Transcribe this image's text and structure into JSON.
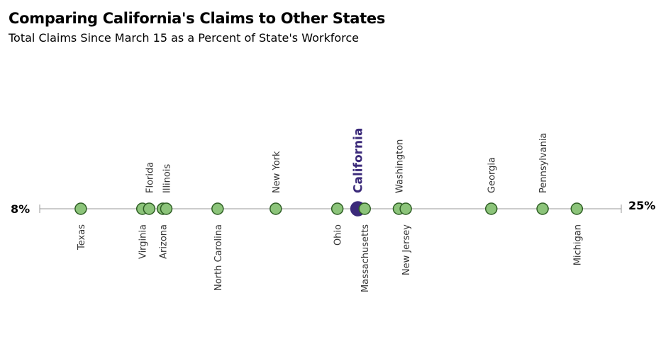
{
  "chart_data": {
    "type": "scatter",
    "title": "Comparing California's Claims to Other States",
    "subtitle": "Total Claims Since March 15 as a Percent of State's Workforce",
    "xlim": [
      8,
      25
    ],
    "min_label": "8%",
    "max_label": "25%",
    "point_color": "#8cc47a",
    "point_stroke": "#2e5e24",
    "highlight_color": "#3b2a7a",
    "points": [
      {
        "label": "Texas",
        "value": 9.2,
        "side": "below"
      },
      {
        "label": "Virginia",
        "value": 11.0,
        "side": "below"
      },
      {
        "label": "Florida",
        "value": 11.2,
        "side": "above"
      },
      {
        "label": "Arizona",
        "value": 11.6,
        "side": "below"
      },
      {
        "label": "Illinois",
        "value": 11.7,
        "side": "above"
      },
      {
        "label": "North Carolina",
        "value": 13.2,
        "side": "below"
      },
      {
        "label": "New York",
        "value": 14.9,
        "side": "above"
      },
      {
        "label": "Ohio",
        "value": 16.7,
        "side": "below"
      },
      {
        "label": "Massachusetts",
        "value": 17.5,
        "side": "below"
      },
      {
        "label": "California",
        "value": 17.3,
        "side": "above",
        "highlight": true
      },
      {
        "label": "Washington",
        "value": 18.5,
        "side": "above"
      },
      {
        "label": "New Jersey",
        "value": 18.7,
        "side": "below"
      },
      {
        "label": "Georgia",
        "value": 21.2,
        "side": "above"
      },
      {
        "label": "Pennsylvania",
        "value": 22.7,
        "side": "above"
      },
      {
        "label": "Michigan",
        "value": 23.7,
        "side": "below"
      }
    ]
  }
}
